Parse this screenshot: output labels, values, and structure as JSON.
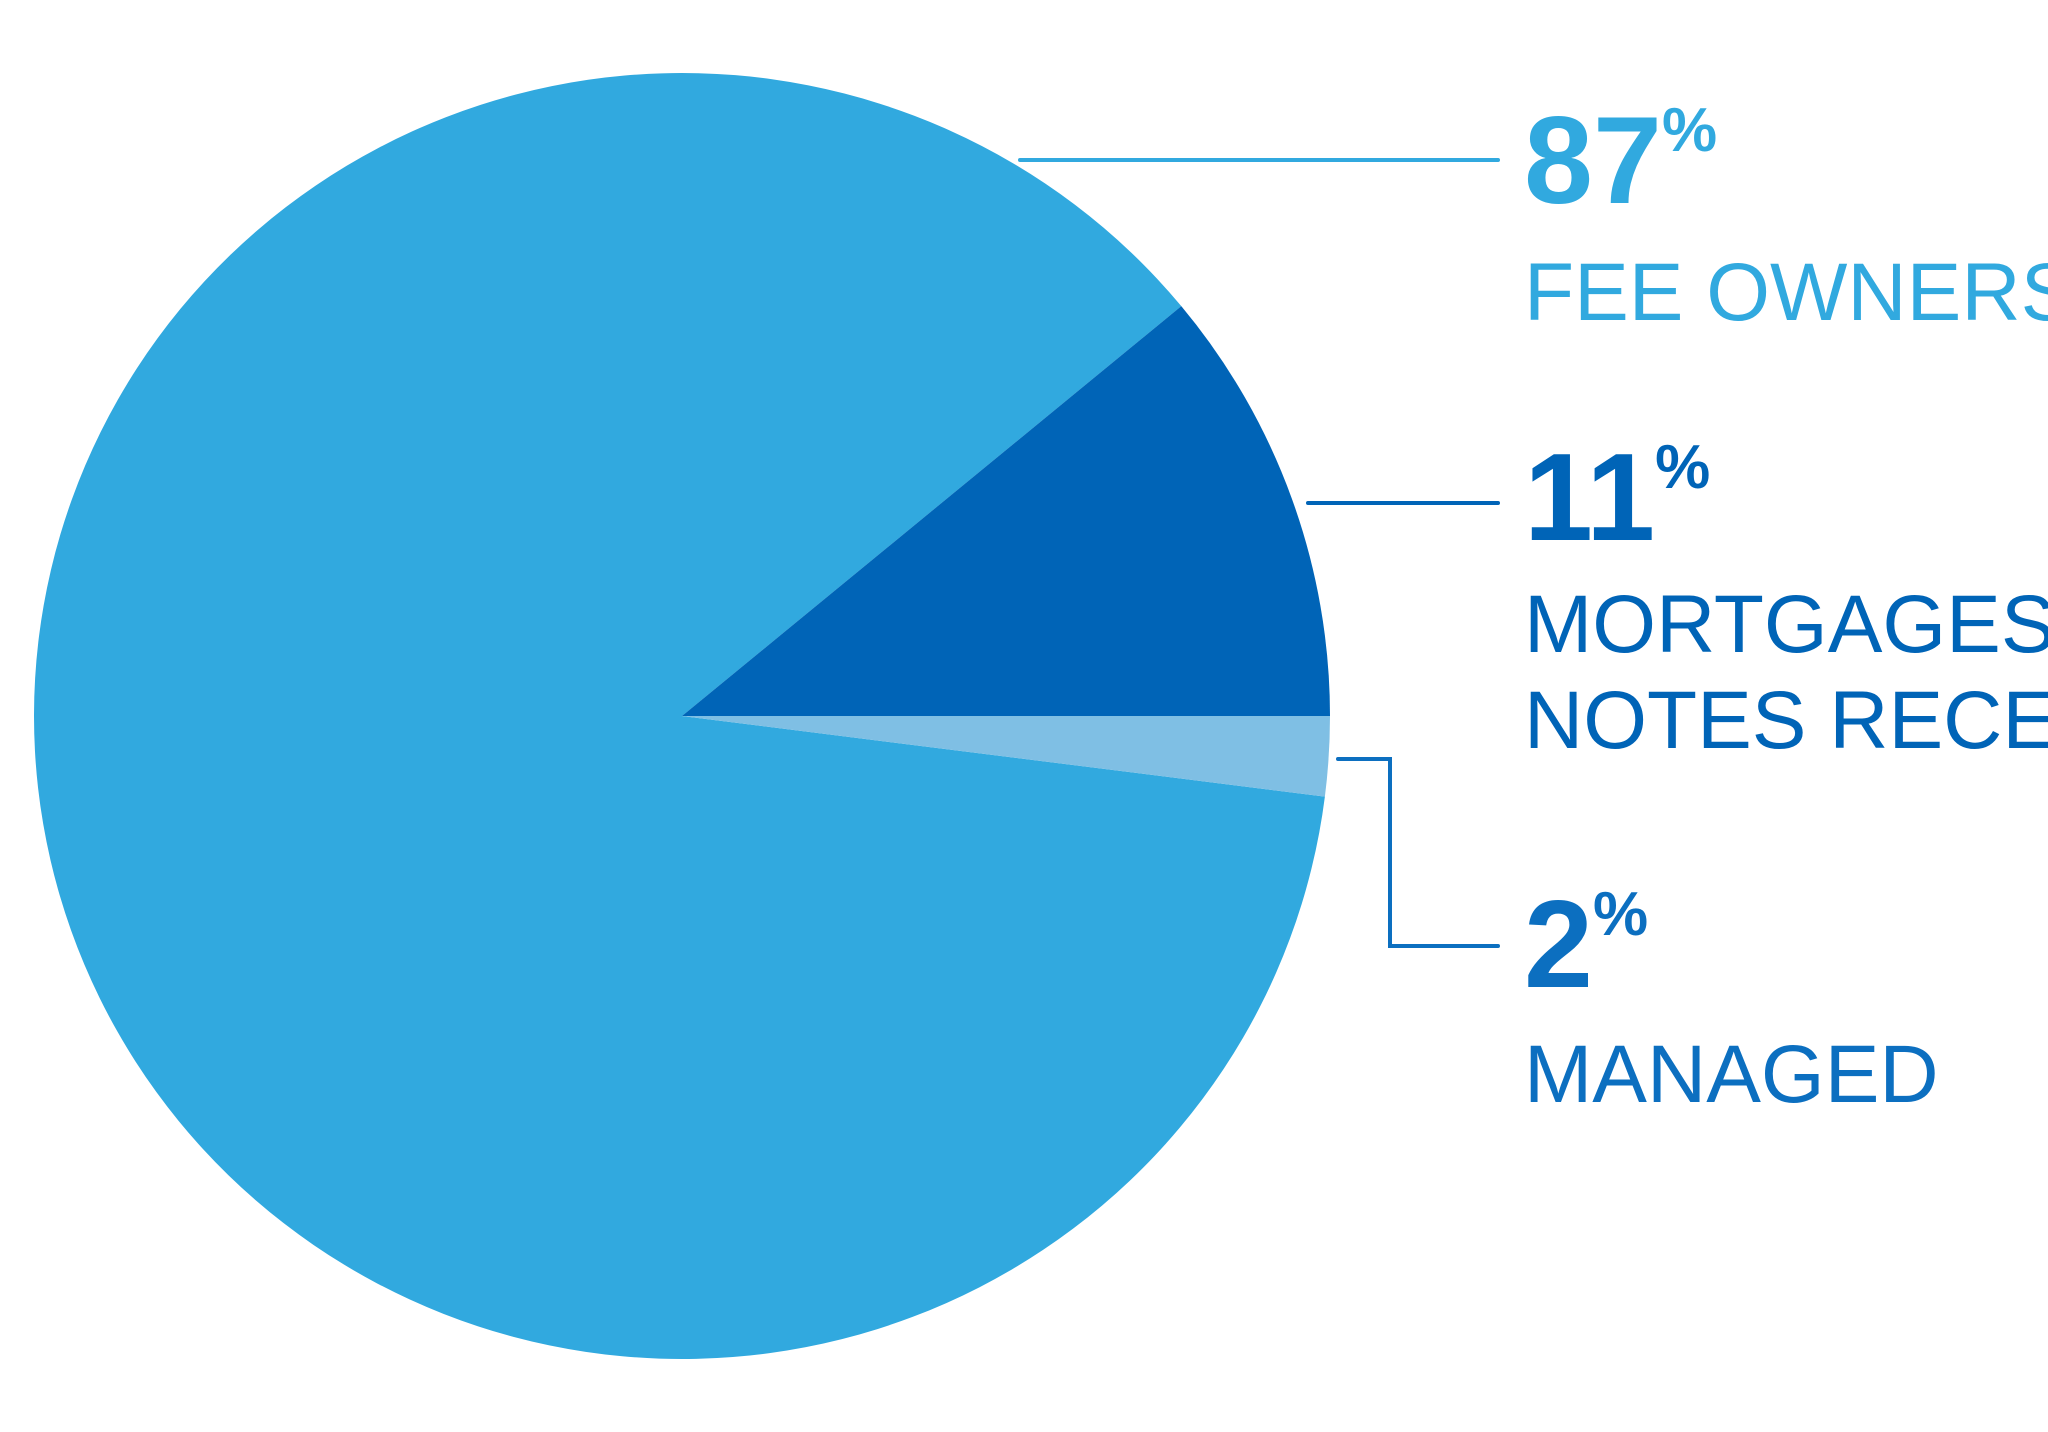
{
  "chart_data": {
    "type": "pie",
    "slices": [
      {
        "label_lines": [
          "FEE OWNERSHIP"
        ],
        "value": 87,
        "value_text": "87",
        "pct_sign": "%",
        "color": "#31a9df"
      },
      {
        "label_lines": [
          "MORTGAGES/",
          "NOTES RECEIVABLE"
        ],
        "value": 11,
        "value_text": "11",
        "pct_sign": "%",
        "color": "#0064b7"
      },
      {
        "label_lines": [
          "MANAGED"
        ],
        "value": 2,
        "value_text": "2",
        "pct_sign": "%",
        "color": "#7fbfe4"
      }
    ],
    "legend": "right",
    "label_colors": [
      "#31a9df",
      "#0064b7",
      "#0c6fc0"
    ]
  }
}
